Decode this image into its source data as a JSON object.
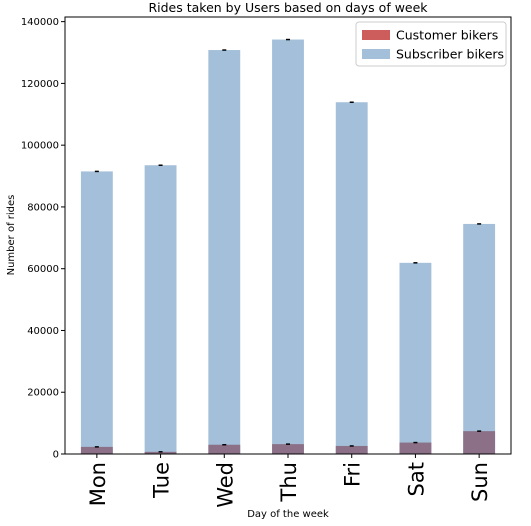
{
  "chart_data": {
    "type": "bar",
    "stacked": true,
    "overlay": true,
    "title": "Rides taken by Users based on days of week",
    "xlabel": "Day of the week",
    "ylabel": "Number of rides",
    "ylim": [
      0,
      141500
    ],
    "yticks": [
      0,
      20000,
      40000,
      60000,
      80000,
      100000,
      120000,
      140000
    ],
    "grid": false,
    "legend_position": "top-right",
    "categories": [
      "Mon",
      "Tue",
      "Wed",
      "Thu",
      "Fri",
      "Sat",
      "Sun"
    ],
    "series": [
      {
        "name": "Customer bikers",
        "color": "#cd5c5c",
        "values": [
          2300,
          700,
          3000,
          3200,
          2600,
          3700,
          7400
        ]
      },
      {
        "name": "Subscriber bikers",
        "color": "#a3bfd9",
        "values": [
          91500,
          93500,
          130800,
          134200,
          113900,
          61900,
          74500
        ]
      }
    ],
    "overlap_color": "#8b7088"
  }
}
